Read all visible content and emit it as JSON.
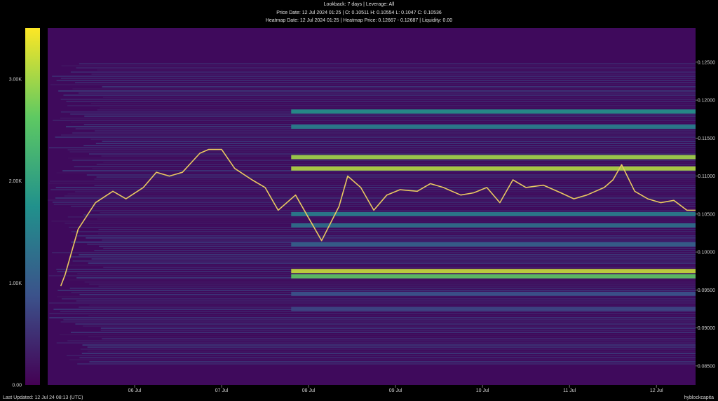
{
  "header": {
    "line1": "Lookback: 7 days | Leverage: All",
    "line2": "Price Date: 12 Jul 2024 01:25 | O: 0.10511 H: 0.10554 L: 0.1047 C: 0.10536",
    "line3": "Heatmap Date: 12 Jul 2024 01:25 | Heatmap Price: 0.12667 - 0.12687 | Liquidity: 0.00"
  },
  "footer": {
    "last_updated": "Last Updated: 12 Jul 24 08:13 (UTC)",
    "brand": "hyblockcapita"
  },
  "colors": {
    "background": "#000000",
    "heatmap_low": "#440154",
    "heatmap_mid": "#21918c",
    "heatmap_high": "#fde725",
    "candle_up": "#e8c860",
    "candle_down": "#d8404a"
  },
  "chart_data": {
    "type": "heatmap",
    "title": "",
    "xlabel": "",
    "ylabel": "",
    "x_ticks": [
      "06 Jul",
      "07 Jul",
      "08 Jul",
      "09 Jul",
      "10 Jul",
      "11 Jul",
      "12 Jul"
    ],
    "x_range_days": [
      5.0,
      12.45
    ],
    "y_ticks": [
      0.085,
      0.09,
      0.095,
      0.1,
      0.105,
      0.11,
      0.115,
      0.12,
      0.125
    ],
    "y_tick_labels": [
      "0.08500",
      "0.09000",
      "0.09500",
      "0.10000",
      "0.10500",
      "0.11000",
      "0.11500",
      "0.12000",
      "0.12500"
    ],
    "ylim": [
      0.0825,
      0.1295
    ],
    "colorbar": {
      "ticks": [
        0,
        1000,
        2000,
        3000
      ],
      "tick_labels": [
        "0.00",
        "1.00K",
        "2.00K",
        "3.00K"
      ],
      "range": [
        0,
        3500
      ]
    },
    "price_series": {
      "name": "",
      "x": [
        5.15,
        5.2,
        5.35,
        5.55,
        5.75,
        5.9,
        6.1,
        6.25,
        6.4,
        6.55,
        6.75,
        6.85,
        7.0,
        7.15,
        7.35,
        7.5,
        7.65,
        7.85,
        8.0,
        8.15,
        8.35,
        8.45,
        8.6,
        8.75,
        8.9,
        9.05,
        9.25,
        9.4,
        9.55,
        9.75,
        9.9,
        10.05,
        10.2,
        10.35,
        10.5,
        10.7,
        10.9,
        11.05,
        11.2,
        11.4,
        11.5,
        11.6,
        11.75,
        11.9,
        12.05,
        12.2,
        12.35,
        12.45
      ],
      "y": [
        0.0955,
        0.097,
        0.103,
        0.1065,
        0.108,
        0.107,
        0.1085,
        0.1105,
        0.11,
        0.1105,
        0.113,
        0.1135,
        0.1135,
        0.111,
        0.1095,
        0.1085,
        0.1055,
        0.1075,
        0.1045,
        0.1015,
        0.106,
        0.11,
        0.1085,
        0.1055,
        0.1075,
        0.1082,
        0.108,
        0.109,
        0.1085,
        0.1075,
        0.1078,
        0.1085,
        0.1065,
        0.1095,
        0.1085,
        0.1088,
        0.1078,
        0.107,
        0.1075,
        0.1085,
        0.1095,
        0.1115,
        0.108,
        0.107,
        0.1065,
        0.1068,
        0.1055,
        0.1055
      ]
    },
    "liquidity_bands": [
      {
        "price": 0.0975,
        "level": 3200
      },
      {
        "price": 0.0968,
        "level": 2600
      },
      {
        "price": 0.1125,
        "level": 3000
      },
      {
        "price": 0.111,
        "level": 3100
      },
      {
        "price": 0.1185,
        "level": 1800
      },
      {
        "price": 0.1165,
        "level": 1500
      },
      {
        "price": 0.105,
        "level": 1500
      },
      {
        "price": 0.1035,
        "level": 1300
      },
      {
        "price": 0.101,
        "level": 1100
      },
      {
        "price": 0.0945,
        "level": 900
      },
      {
        "price": 0.0925,
        "level": 750
      }
    ]
  }
}
